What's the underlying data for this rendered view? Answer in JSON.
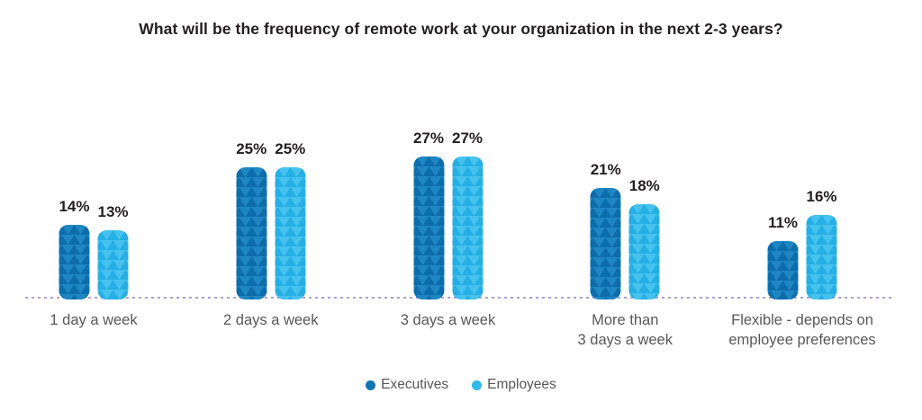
{
  "title": "What will be the frequency of remote work at your organization in the next 2-3 years?",
  "chart_data": {
    "type": "bar",
    "categories": [
      {
        "lines": [
          "1 day a week"
        ]
      },
      {
        "lines": [
          "2 days a week"
        ]
      },
      {
        "lines": [
          "3 days a week"
        ]
      },
      {
        "lines": [
          "More than",
          "3 days a week"
        ]
      },
      {
        "lines": [
          "Flexible - depends on",
          "employee preferences"
        ]
      }
    ],
    "series": [
      {
        "name": "Executives",
        "values": [
          14,
          25,
          27,
          21,
          11
        ],
        "color": "#0f74b2",
        "pattern": {
          "base": "#1f86c4",
          "triangle": "#0d6dab"
        }
      },
      {
        "name": "Employees",
        "values": [
          13,
          25,
          27,
          18,
          16
        ],
        "color": "#31b8e9",
        "pattern": {
          "base": "#46c2ee",
          "triangle": "#25afe4"
        }
      }
    ],
    "value_suffix": "%",
    "ylim": [
      0,
      30
    ],
    "grid": false,
    "value_labels": "above-bars",
    "baseline": {
      "style": "dashed",
      "color": "#a9a2d8"
    },
    "legend_position": "bottom"
  },
  "text_colors": {
    "title": "#231f20",
    "value_label": "#231f20",
    "category_label": "#58585a",
    "legend_label": "#58585a"
  }
}
